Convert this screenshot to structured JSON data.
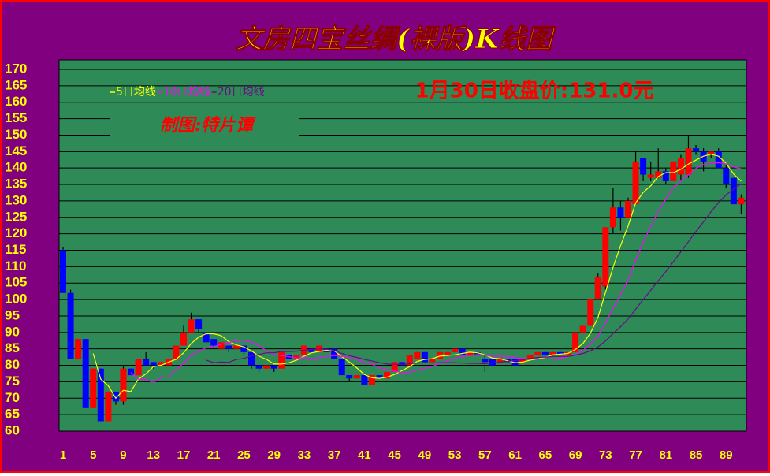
{
  "chart_data": {
    "type": "candlestick",
    "title": "文房四宝丝绸(裸版)K线图",
    "annotations": [
      "1月30日收盘价:131.0元",
      "制图:特片谭"
    ],
    "categories": [
      1,
      null,
      null,
      null,
      5,
      null,
      null,
      null,
      9,
      null,
      null,
      null,
      13,
      null,
      null,
      null,
      17,
      null,
      null,
      null,
      21,
      null,
      null,
      null,
      25,
      null,
      null,
      null,
      29,
      null,
      null,
      null,
      33,
      null,
      null,
      null,
      37,
      null,
      null,
      null,
      41,
      null,
      null,
      null,
      45,
      null,
      null,
      null,
      49,
      null,
      null,
      null,
      53,
      null,
      null,
      null,
      57,
      null,
      null,
      null,
      61,
      null,
      null,
      null,
      65,
      null,
      null,
      null,
      69,
      null,
      null,
      null,
      73,
      null,
      null,
      null,
      77,
      null,
      null,
      null,
      81,
      null,
      null,
      null,
      85,
      null,
      null,
      null,
      89,
      null,
      null
    ],
    "open": [
      115,
      102,
      82,
      88,
      67,
      79,
      63,
      72,
      69,
      79,
      77,
      82,
      81,
      80,
      80,
      82,
      86,
      90,
      94,
      90,
      88,
      85,
      86,
      85,
      86,
      84,
      80,
      79,
      80,
      79,
      83,
      82,
      83,
      85,
      84,
      85,
      85,
      82,
      77,
      76,
      77,
      74,
      77,
      76,
      78,
      81,
      80,
      82,
      84,
      81,
      82,
      83,
      84,
      85,
      83,
      84,
      82,
      82,
      81,
      82,
      82,
      81,
      82,
      83,
      84,
      83,
      84,
      83,
      84,
      90,
      92,
      100,
      104,
      122,
      128,
      125,
      129,
      143,
      137,
      137,
      139,
      136,
      138,
      138,
      146,
      145,
      144,
      145,
      140,
      137,
      129
    ],
    "high": [
      116,
      103,
      88,
      88,
      79,
      79,
      72,
      72,
      80,
      79,
      82,
      84,
      81,
      81,
      82,
      86,
      92,
      96,
      94,
      90,
      88,
      87,
      86,
      86,
      86,
      84,
      80,
      80,
      80,
      84,
      83,
      83,
      86,
      85,
      86,
      85,
      85,
      82,
      77,
      77,
      77,
      77,
      77,
      78,
      81,
      81,
      83,
      84,
      84,
      82,
      84,
      84,
      85,
      85,
      84,
      84,
      83,
      82,
      82,
      82,
      82,
      82,
      83,
      84,
      84,
      84,
      84,
      84,
      90,
      92,
      100,
      108,
      122,
      134,
      130,
      131,
      145,
      143,
      142,
      146,
      140,
      142,
      144,
      150,
      147,
      146,
      145,
      146,
      141,
      137,
      132
    ],
    "low": [
      102,
      82,
      82,
      67,
      67,
      63,
      63,
      68,
      68,
      77,
      77,
      80,
      79,
      80,
      80,
      82,
      86,
      90,
      90,
      87,
      85,
      85,
      84,
      85,
      83,
      79,
      78,
      79,
      78,
      79,
      82,
      82,
      83,
      84,
      84,
      84,
      82,
      77,
      75,
      76,
      74,
      74,
      76,
      76,
      78,
      80,
      80,
      82,
      81,
      81,
      82,
      83,
      84,
      83,
      83,
      83,
      78,
      80,
      81,
      81,
      80,
      81,
      82,
      83,
      83,
      83,
      83,
      83,
      84,
      90,
      92,
      100,
      103,
      120,
      121,
      125,
      129,
      136,
      136,
      137,
      135,
      136,
      136,
      137,
      144,
      139,
      143,
      140,
      134,
      129,
      126
    ],
    "close": [
      102,
      82,
      88,
      67,
      79,
      63,
      72,
      69,
      79,
      77,
      82,
      80,
      80,
      81,
      82,
      86,
      90,
      94,
      91,
      87,
      86,
      87,
      85,
      86,
      84,
      80,
      79,
      80,
      79,
      84,
      82,
      83,
      86,
      84,
      86,
      84,
      82,
      77,
      76,
      77,
      74,
      77,
      76,
      78,
      81,
      80,
      83,
      84,
      81,
      82,
      84,
      84,
      85,
      83,
      84,
      83,
      81,
      80,
      82,
      81,
      80,
      82,
      83,
      84,
      83,
      84,
      83,
      84,
      90,
      92,
      100,
      107,
      122,
      128,
      125,
      130,
      142,
      138,
      138,
      139,
      136,
      142,
      143,
      146,
      145,
      142,
      145,
      140,
      135,
      129,
      131
    ],
    "up_color": "#ff0000",
    "down_color": "#0000ff",
    "series": [
      {
        "name": "5日均线",
        "color": "#ffff00",
        "values": [
          null,
          null,
          null,
          null,
          83.6,
          75.8,
          73.8,
          70,
          72.4,
          72,
          75.8,
          77.4,
          79.6,
          80,
          81,
          81.8,
          83.8,
          86.6,
          88.6,
          89.6,
          89.6,
          89,
          87.2,
          86.2,
          85.6,
          84.4,
          82.8,
          81.8,
          80.4,
          80.4,
          80.8,
          81.6,
          82.8,
          83.8,
          84.2,
          84.6,
          84.4,
          82.6,
          81,
          79.2,
          77.2,
          76.2,
          76,
          76.4,
          77.2,
          78.4,
          79.6,
          81.2,
          81.8,
          82,
          82.8,
          83,
          83.2,
          83.6,
          84,
          83.8,
          83.2,
          82.2,
          82,
          81.4,
          80.8,
          81,
          81.6,
          82,
          82.4,
          83.2,
          83.4,
          83.6,
          84.8,
          86.6,
          89.8,
          94.6,
          102.2,
          109.8,
          116.4,
          122.4,
          129.4,
          132.6,
          134.6,
          137.4,
          138.6,
          138.6,
          139.6,
          141.2,
          142.4,
          143.6,
          144.2,
          143.6,
          141.4,
          138.2,
          136
        ]
      },
      {
        "name": "10日均线",
        "color": "#ff00ff",
        "values": [
          null,
          null,
          null,
          null,
          null,
          null,
          null,
          null,
          null,
          77.8,
          75.8,
          75.6,
          74.8,
          76.2,
          76.5,
          78.8,
          80.6,
          83.1,
          84.3,
          85.3,
          85.7,
          86.4,
          86.9,
          87.4,
          87.6,
          87,
          85.9,
          84.5,
          83.3,
          83,
          82.6,
          82.2,
          82.3,
          82.1,
          82.3,
          82.7,
          83,
          82.7,
          82.4,
          81.7,
          80.9,
          80.3,
          79.3,
          78.7,
          78.2,
          77.8,
          77.9,
          78.6,
          79.1,
          79.6,
          80.6,
          81.3,
          82.2,
          82.7,
          83,
          83.3,
          83.1,
          82.7,
          82.8,
          82.7,
          82.3,
          82.1,
          81.9,
          82,
          81.9,
          82,
          82.2,
          82.6,
          83.4,
          84.5,
          86.5,
          89,
          92.9,
          97.3,
          101.5,
          106.1,
          112,
          117.4,
          122.2,
          126.9,
          130.5,
          134,
          136.1,
          137.9,
          139.9,
          141.1,
          141.4,
          141.6,
          141.3,
          140.3,
          139.8
        ]
      },
      {
        "name": "20日均线",
        "color": "#6a0a8a",
        "values": [
          null,
          null,
          null,
          null,
          null,
          null,
          null,
          null,
          null,
          null,
          null,
          null,
          null,
          null,
          null,
          null,
          null,
          null,
          null,
          81.6,
          80.8,
          81,
          80.9,
          81.8,
          82.1,
          82.9,
          83.3,
          83.8,
          83.8,
          84.2,
          84.2,
          84.3,
          84.6,
          84.8,
          85,
          84.9,
          84.5,
          83.6,
          82.9,
          82.4,
          81.8,
          81.3,
          80.8,
          80.4,
          80.3,
          80.3,
          80.5,
          80.7,
          80.8,
          80.7,
          80.8,
          80.8,
          80.8,
          80.7,
          80.6,
          80.6,
          80.5,
          80.7,
          81,
          81.2,
          81.5,
          81.7,
          82.1,
          82.4,
          82.5,
          82.7,
          82.7,
          82.7,
          83.1,
          83.6,
          84.4,
          85.6,
          87.4,
          89.7,
          91.7,
          94.1,
          97.1,
          100,
          102.8,
          105.7,
          108.5,
          111.5,
          114.5,
          117.6,
          120.7,
          123.6,
          126.7,
          129.5,
          131.8,
          133.6,
          135.2
        ]
      }
    ],
    "ylim": [
      60,
      170
    ],
    "yticks": [
      60,
      65,
      70,
      75,
      80,
      85,
      90,
      95,
      100,
      105,
      110,
      115,
      120,
      125,
      130,
      135,
      140,
      145,
      150,
      155,
      160,
      165,
      170
    ],
    "grid": true
  }
}
